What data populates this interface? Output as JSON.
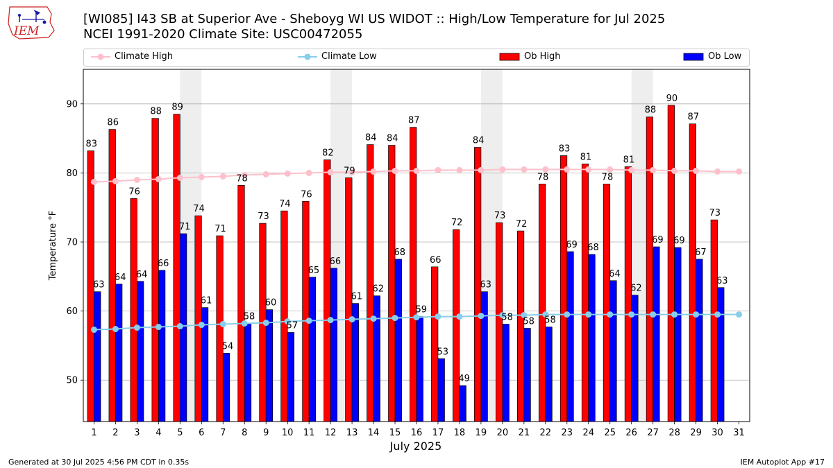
{
  "header": {
    "logo_text": "IEM",
    "title_line1": "[WI085] I43 SB at Superior Ave - Sheboyg WI US WIDOT :: High/Low Temperature for Jul 2025",
    "title_line2": "NCEI 1991-2020 Climate Site: USC00472055"
  },
  "footer": {
    "generated": "Generated at 30 Jul 2025 4:56 PM CDT in 0.35s",
    "app": "IEM Autoplot App #17"
  },
  "colors": {
    "ob_high": "#ff0000",
    "ob_low": "#0000ff",
    "climate_high": "#ffc0cb",
    "climate_low": "#87ceeb",
    "weekend_shade": "#eeeeee"
  },
  "chart_data": {
    "type": "bar",
    "xlabel": "July 2025",
    "ylabel": "Temperature °F",
    "ylim": [
      44,
      95
    ],
    "yticks": [
      50,
      60,
      70,
      80,
      90
    ],
    "grid": "horizontal",
    "legend_position": "top",
    "categories": [
      "1",
      "2",
      "3",
      "4",
      "5",
      "6",
      "7",
      "8",
      "9",
      "10",
      "11",
      "12",
      "13",
      "14",
      "15",
      "16",
      "17",
      "18",
      "19",
      "20",
      "21",
      "22",
      "23",
      "24",
      "25",
      "26",
      "27",
      "28",
      "29",
      "30",
      "31"
    ],
    "shaded_days": [
      [
        5,
        6
      ],
      [
        12,
        13
      ],
      [
        19,
        20
      ],
      [
        26,
        27
      ]
    ],
    "series": [
      {
        "name": "Ob High",
        "kind": "bar",
        "color": "#ff0000",
        "values": [
          83.2,
          86.3,
          76.3,
          87.9,
          88.5,
          73.8,
          70.9,
          78.2,
          72.7,
          74.5,
          75.9,
          81.9,
          79.3,
          84.1,
          84.0,
          86.6,
          66.4,
          71.8,
          83.7,
          72.8,
          71.6,
          78.4,
          82.5,
          81.3,
          78.4,
          80.9,
          88.1,
          89.8,
          87.1,
          73.2,
          null
        ],
        "labels": [
          "83",
          "86",
          "76",
          "88",
          "89",
          "74",
          "71",
          "78",
          "73",
          "74",
          "76",
          "82",
          "79",
          "84",
          "84",
          "87",
          "66",
          "72",
          "84",
          "73",
          "72",
          "78",
          "83",
          "81",
          "78",
          "81",
          "88",
          "90",
          "87",
          "73",
          ""
        ]
      },
      {
        "name": "Ob Low",
        "kind": "bar",
        "color": "#0000ff",
        "values": [
          62.8,
          63.9,
          64.3,
          65.9,
          71.2,
          60.5,
          53.9,
          58.2,
          60.2,
          56.9,
          64.9,
          66.2,
          61.1,
          62.2,
          67.5,
          59.2,
          53.1,
          49.2,
          62.8,
          58.1,
          57.5,
          57.7,
          68.6,
          68.2,
          64.4,
          62.3,
          69.3,
          69.2,
          67.5,
          63.4,
          null
        ],
        "labels": [
          "63",
          "64",
          "64",
          "66",
          "71",
          "61",
          "54",
          "58",
          "60",
          "57",
          "65",
          "66",
          "61",
          "62",
          "68",
          "59",
          "53",
          "49",
          "63",
          "58",
          "58",
          "58",
          "69",
          "68",
          "64",
          "62",
          "69",
          "69",
          "67",
          "63",
          ""
        ]
      },
      {
        "name": "Climate High",
        "kind": "line",
        "color": "#ffc0cb",
        "values": [
          78.7,
          78.8,
          79.0,
          79.1,
          79.3,
          79.4,
          79.5,
          79.7,
          79.8,
          79.9,
          80.0,
          80.1,
          80.1,
          80.2,
          80.3,
          80.3,
          80.4,
          80.4,
          80.4,
          80.5,
          80.5,
          80.5,
          80.5,
          80.5,
          80.5,
          80.4,
          80.4,
          80.3,
          80.3,
          80.2,
          80.2
        ]
      },
      {
        "name": "Climate Low",
        "kind": "line",
        "color": "#87ceeb",
        "values": [
          57.3,
          57.4,
          57.6,
          57.7,
          57.8,
          58.0,
          58.1,
          58.2,
          58.3,
          58.5,
          58.6,
          58.7,
          58.8,
          58.9,
          59.0,
          59.1,
          59.2,
          59.2,
          59.3,
          59.4,
          59.4,
          59.5,
          59.5,
          59.5,
          59.5,
          59.5,
          59.5,
          59.5,
          59.5,
          59.5,
          59.5
        ]
      }
    ]
  }
}
